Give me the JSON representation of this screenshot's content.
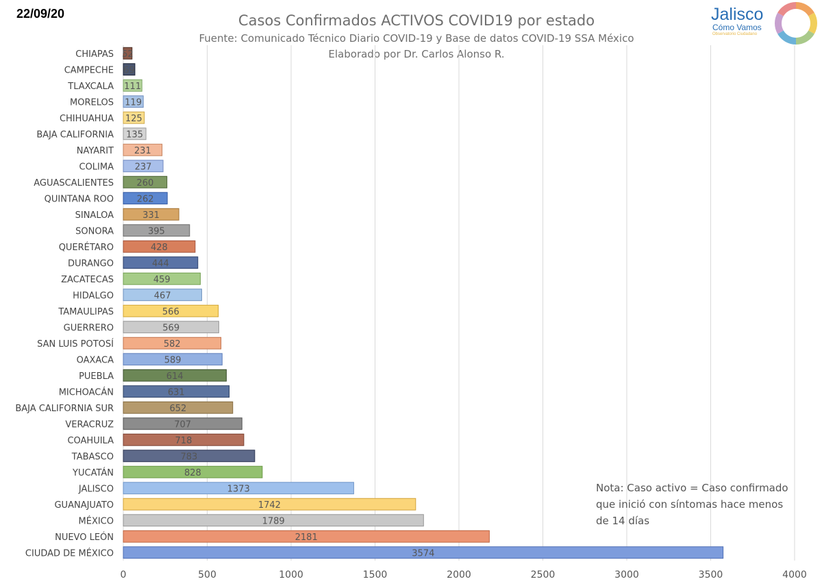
{
  "header": {
    "date": "22/09/20",
    "logo_main": "Jalisco",
    "logo_sub": "Cómo Vamos",
    "logo_tagline": "Observatorio Ciudadano"
  },
  "colors": {
    "ring": [
      "#f0a35e",
      "#f1cf5c",
      "#a9c98a",
      "#6cb2d8",
      "#c7a0cf",
      "#e98a8a"
    ]
  },
  "note": {
    "lines": [
      "Nota: Caso activo = Caso confirmado",
      "que inició con síntomas hace menos",
      "de 14 días"
    ]
  },
  "chart_data": {
    "type": "bar",
    "orientation": "horizontal",
    "title": "Casos Confirmados ACTIVOS COVID19 por estado",
    "subtitle": [
      "Fuente: Comunicado Técnico Diario COVID-19 y Base de datos COVID-19 SSA México",
      "Elaborado por Dr. Carlos Alonso R."
    ],
    "xlim": [
      0,
      4000
    ],
    "xticks": [
      0,
      500,
      1000,
      1500,
      2000,
      2500,
      3000,
      3500,
      4000
    ],
    "grid": true,
    "categories": [
      "CHIAPAS",
      "CAMPECHE",
      "TLAXCALA",
      "MORELOS",
      "CHIHUAHUA",
      "BAJA CALIFORNIA",
      "NAYARIT",
      "COLIMA",
      "AGUASCALIENTES",
      "QUINTANA ROO",
      "SINALOA",
      "SONORA",
      "QUERÉTARO",
      "DURANGO",
      "ZACATECAS",
      "HIDALGO",
      "TAMAULIPAS",
      "GUERRERO",
      "SAN LUIS POTOSÍ",
      "OAXACA",
      "PUEBLA",
      "MICHOACÁN",
      "BAJA CALIFORNIA SUR",
      "VERACRUZ",
      "COAHUILA",
      "TABASCO",
      "YUCATÁN",
      "JALISCO",
      "GUANAJUATO",
      "MÉXICO",
      "NUEVO LEÓN",
      "CIUDAD DE MÉXICO"
    ],
    "values": [
      52,
      69,
      111,
      119,
      125,
      135,
      231,
      237,
      260,
      262,
      331,
      395,
      428,
      444,
      459,
      467,
      566,
      569,
      582,
      589,
      614,
      631,
      652,
      707,
      718,
      783,
      828,
      1373,
      1742,
      1789,
      2181,
      3574
    ],
    "bar_colors": [
      "#8c5b4b",
      "#4a5670",
      "#b3d39a",
      "#a8c3e6",
      "#f9dd8c",
      "#d4d4d4",
      "#f3b99a",
      "#a9bfea",
      "#7e9962",
      "#5b86cf",
      "#d6a565",
      "#a2a2a2",
      "#d77f5c",
      "#5a73a6",
      "#a6cc88",
      "#a8c8ea",
      "#fad771",
      "#cbcbcb",
      "#f2ac86",
      "#93b0e1",
      "#6c8756",
      "#5b739f",
      "#b59a6d",
      "#8c8c8c",
      "#b36f5a",
      "#5e6a8a",
      "#93c06f",
      "#9ec0ec",
      "#fbd579",
      "#c8c8c8",
      "#eb9472",
      "#7d9cdc"
    ],
    "bar_borders": [
      "#4d2f25",
      "#1b2235",
      "#7da565",
      "#6c8bbd",
      "#cfa94b",
      "#9a9a9a",
      "#c68460",
      "#6f88c0",
      "#4b6435",
      "#2f56a0",
      "#a37436",
      "#6a6a6a",
      "#a4513a",
      "#2c3f6b",
      "#74a053",
      "#6f91bd",
      "#d1a637",
      "#959595",
      "#c27652",
      "#5f7fbb",
      "#3e5330",
      "#2f4366",
      "#846a3e",
      "#555555",
      "#7d4232",
      "#2d3653",
      "#6b9a48",
      "#6f94c7",
      "#d2a43f",
      "#959595",
      "#bd6541",
      "#4f6fb5"
    ]
  }
}
